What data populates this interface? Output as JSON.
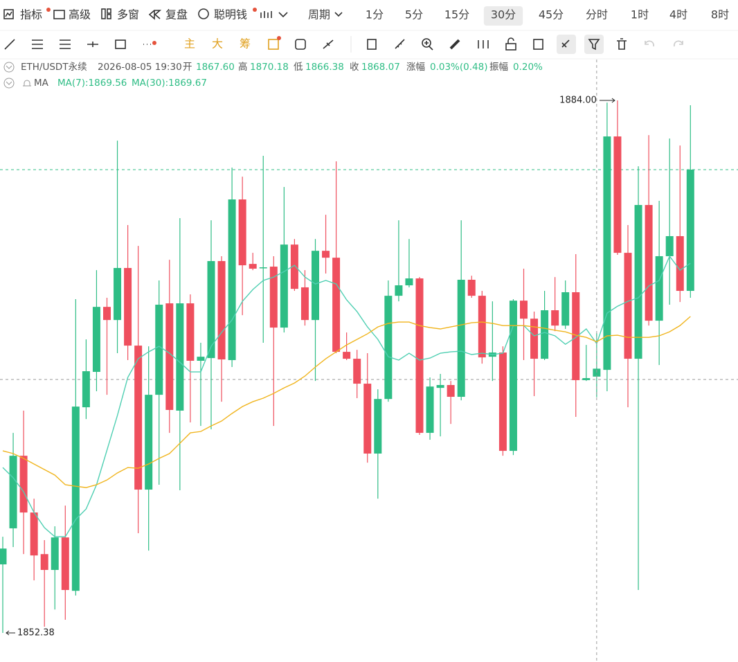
{
  "toolbar": {
    "tools": [
      "指标",
      "高级",
      "多窗",
      "复盘",
      "聪明钱"
    ],
    "period_label": "周期",
    "periods": [
      "1分",
      "5分",
      "15分",
      "30分",
      "45分",
      "分时",
      "1时",
      "4时",
      "8时"
    ],
    "selected": "30分"
  },
  "drawing_toolbar": {
    "labels": [
      "主",
      "大",
      "筹"
    ]
  },
  "info": {
    "symbol": "ETH/USDT永续",
    "time": "2026-08-05 19:30",
    "open_label": "开",
    "open": "1867.60",
    "high_label": "高",
    "high": "1870.18",
    "low_label": "低",
    "low": "1866.38",
    "close_label": "收",
    "close": "1868.07",
    "change_label": "涨幅",
    "change": "0.03%(0.48)",
    "amplitude_label": "振幅",
    "amplitude": "0.20%"
  },
  "indicator_label": "MA",
  "chart_data": {
    "type": "candlestick",
    "up_color": "#2ebd85",
    "down_color": "#ef4f5e",
    "open": [
      1856.45,
      1858.59,
      1862.9,
      1859.53,
      1857.06,
      1856.12,
      1858.05,
      1854.88,
      1865.78,
      1867.88,
      1871.74,
      1870.96,
      1874.05,
      1869.44,
      1860.89,
      1866.52,
      1871.95,
      1865.58,
      1871.95,
      1868.54,
      1868.7,
      1874.46,
      1868.58,
      1878.12,
      1874.29,
      1874.05,
      1874.13,
      1870.51,
      1875.44,
      1872.9,
      1870.96,
      1875.07,
      1874.66,
      1869.07,
      1868.66,
      1867.18,
      1863.03,
      1866.27,
      1872.4,
      1873.02,
      1873.43,
      1864.26,
      1866.93,
      1867.1,
      1866.4,
      1873.35,
      1872.4,
      1868.78,
      1869.03,
      1863.19,
      1872.11,
      1871.04,
      1868.66,
      1871.54,
      1870.63,
      1872.61,
      1867.39,
      1867.6,
      1868.0,
      1881.86,
      1874.95,
      1868.66,
      1877.79,
      1870.92,
      1874.75,
      1875.94,
      1872.69
    ],
    "high": [
      1858.09,
      1864.26,
      1865.58,
      1860.35,
      1857.89,
      1858.71,
      1859.94,
      1872.2,
      1869.81,
      1873.92,
      1872.28,
      1881.61,
      1876.6,
      1875.36,
      1869.4,
      1873.31,
      1874.54,
      1877.01,
      1872.48,
      1869.61,
      1876.88,
      1874.75,
      1880.01,
      1879.47,
      1874.95,
      1880.71,
      1874.75,
      1878.86,
      1875.77,
      1873.92,
      1875.77,
      1877.21,
      1880.38,
      1870.22,
      1869.19,
      1868.99,
      1866.85,
      1873.31,
      1876.88,
      1875.77,
      1873.51,
      1867.55,
      1867.76,
      1867.34,
      1876.88,
      1873.59,
      1872.69,
      1872.07,
      1869.4,
      1872.2,
      1874.01,
      1871.46,
      1872.69,
      1873.51,
      1873.31,
      1874.87,
      1869.48,
      1870.18,
      1883.87,
      1884.0,
      1876.6,
      1880.09,
      1881.94,
      1878.04,
      1881.74,
      1881.32,
      1883.71
    ],
    "low": [
      1852.38,
      1857.48,
      1857.06,
      1855.5,
      1852.75,
      1853.77,
      1853.16,
      1854.6,
      1865.08,
      1866.73,
      1866.52,
      1868.99,
      1868.58,
      1858.3,
      1857.27,
      1861.18,
      1864.26,
      1860.85,
      1864.88,
      1864.67,
      1864.47,
      1866.11,
      1868.17,
      1871.25,
      1873.92,
      1869.61,
      1864.67,
      1870.22,
      1872.69,
      1870.63,
      1867.34,
      1873.72,
      1868.99,
      1868.58,
      1866.32,
      1862.49,
      1860.35,
      1866.11,
      1872.07,
      1872.9,
      1864.14,
      1863.85,
      1864.05,
      1864.79,
      1866.19,
      1872.28,
      1868.37,
      1867.34,
      1862.9,
      1862.94,
      1868.58,
      1866.44,
      1868.58,
      1870.3,
      1870.43,
      1865.21,
      1867.34,
      1866.38,
      1866.73,
      1874.83,
      1865.78,
      1854.93,
      1870.63,
      1868.29,
      1871.87,
      1872.03,
      1872.28
    ],
    "close": [
      1857.39,
      1862.9,
      1859.53,
      1856.98,
      1856.12,
      1858.05,
      1854.93,
      1865.82,
      1867.92,
      1871.74,
      1870.96,
      1874.05,
      1869.44,
      1860.89,
      1866.52,
      1871.87,
      1865.62,
      1871.95,
      1868.54,
      1868.78,
      1874.46,
      1868.62,
      1878.12,
      1874.21,
      1874.01,
      1874.09,
      1870.51,
      1875.44,
      1872.81,
      1870.96,
      1875.07,
      1874.66,
      1869.07,
      1868.66,
      1867.18,
      1863.03,
      1866.27,
      1872.4,
      1873.02,
      1873.43,
      1864.26,
      1867.01,
      1867.1,
      1866.4,
      1873.35,
      1872.4,
      1868.74,
      1869.03,
      1863.19,
      1872.11,
      1871.04,
      1868.66,
      1871.54,
      1870.63,
      1872.61,
      1867.39,
      1867.51,
      1868.07,
      1881.86,
      1874.95,
      1868.66,
      1877.79,
      1870.92,
      1874.75,
      1875.94,
      1872.69,
      1879.89
    ],
    "high_label": "1884.00",
    "low_label": "1852.38",
    "series": [
      {
        "name": "MA(7):1869.56",
        "color": "#4fcfb2",
        "values": [
          1862.2,
          1861.59,
          1860.76,
          1859.53,
          1858.63,
          1858.09,
          1858.09,
          1859.12,
          1859.74,
          1861.18,
          1863.23,
          1865.29,
          1867.55,
          1868.66,
          1869.07,
          1869.4,
          1868.99,
          1868.45,
          1867.88,
          1867.88,
          1869.4,
          1870.22,
          1870.96,
          1872.07,
          1872.77,
          1873.31,
          1873.51,
          1873.84,
          1874.21,
          1873.51,
          1873.1,
          1873.31,
          1873.1,
          1872.16,
          1871.46,
          1870.55,
          1869.81,
          1868.78,
          1868.58,
          1868.99,
          1868.58,
          1868.7,
          1868.99,
          1869.07,
          1869.11,
          1868.91,
          1868.99,
          1868.91,
          1868.99,
          1870.63,
          1870.63,
          1870.02,
          1870.22,
          1870.02,
          1869.52,
          1869.93,
          1870.43,
          1869.56,
          1871.37,
          1871.78,
          1872.07,
          1872.28,
          1872.98,
          1873.31,
          1874.75,
          1873.92,
          1874.33
        ]
      },
      {
        "name": "MA(30):1869.67",
        "color": "#f0b41c",
        "values": [
          1863.19,
          1863.03,
          1862.74,
          1862.41,
          1862.08,
          1861.75,
          1861.18,
          1861.09,
          1861.01,
          1861.18,
          1861.46,
          1861.88,
          1862.2,
          1862.16,
          1862.41,
          1862.74,
          1863.03,
          1863.64,
          1864.26,
          1864.34,
          1864.67,
          1864.96,
          1865.41,
          1865.82,
          1866.11,
          1866.32,
          1866.6,
          1866.93,
          1867.22,
          1867.63,
          1868.17,
          1868.66,
          1869.07,
          1869.48,
          1869.81,
          1870.14,
          1870.55,
          1870.76,
          1870.84,
          1870.84,
          1870.63,
          1870.51,
          1870.43,
          1870.55,
          1870.67,
          1870.8,
          1870.84,
          1870.76,
          1870.63,
          1870.63,
          1870.63,
          1870.55,
          1870.47,
          1870.35,
          1870.26,
          1870.06,
          1869.93,
          1869.67,
          1870.02,
          1870.06,
          1869.93,
          1869.93,
          1869.93,
          1870.02,
          1870.26,
          1870.63,
          1871.17
        ]
      }
    ]
  }
}
